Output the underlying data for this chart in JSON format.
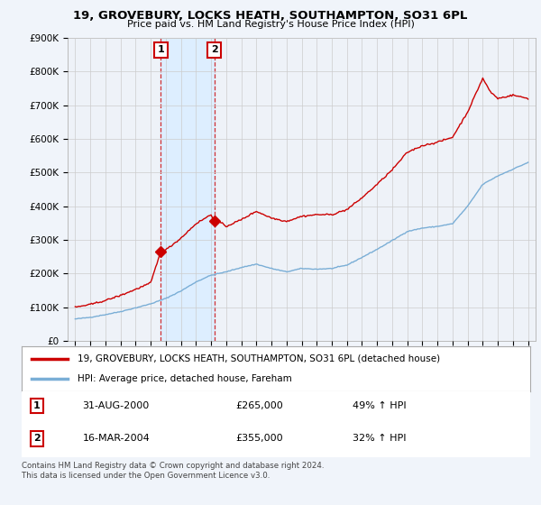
{
  "title": "19, GROVEBURY, LOCKS HEATH, SOUTHAMPTON, SO31 6PL",
  "subtitle": "Price paid vs. HM Land Registry's House Price Index (HPI)",
  "legend_line1": "19, GROVEBURY, LOCKS HEATH, SOUTHAMPTON, SO31 6PL (detached house)",
  "legend_line2": "HPI: Average price, detached house, Fareham",
  "transaction1_date": "31-AUG-2000",
  "transaction1_price": 265000,
  "transaction1_hpi": "49% ↑ HPI",
  "transaction2_date": "16-MAR-2004",
  "transaction2_price": 355000,
  "transaction2_hpi": "32% ↑ HPI",
  "footer": "Contains HM Land Registry data © Crown copyright and database right 2024.\nThis data is licensed under the Open Government Licence v3.0.",
  "red_color": "#cc0000",
  "blue_color": "#7aaed6",
  "shade_color": "#ddeeff",
  "bg_color": "#f0f4fa",
  "plot_bg_color": "#eef2f8",
  "grid_color": "#cccccc",
  "ylim": [
    0,
    900000
  ],
  "xlim_start": 1994.5,
  "xlim_end": 2025.5,
  "transaction1_x": 2000.67,
  "transaction2_x": 2004.21,
  "marker1_label": "1",
  "marker2_label": "2"
}
